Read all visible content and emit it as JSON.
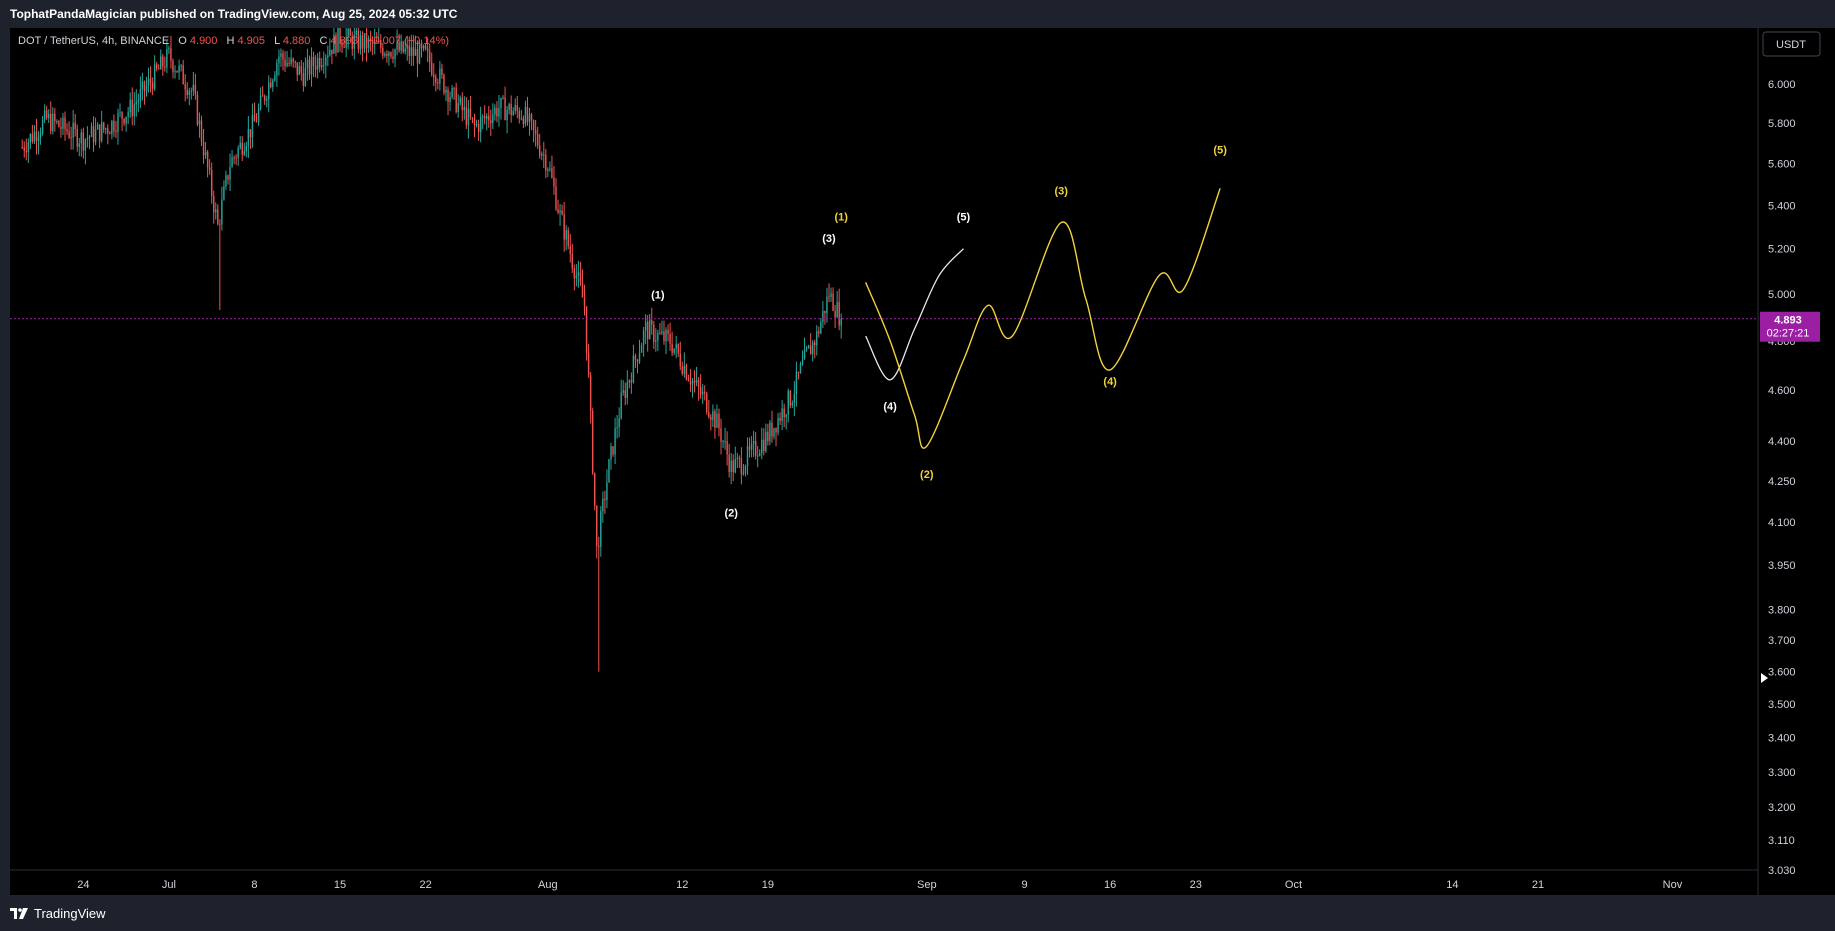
{
  "header": {
    "published": "TophatPandaMagician published on TradingView.com, Aug 25, 2024 05:32 UTC"
  },
  "footer": {
    "brand": "TradingView",
    "logo_icon": "tradingview-logo-icon"
  },
  "colors": {
    "background": "#000000",
    "frame": "#1e222d",
    "up_candle": "#26a69a",
    "down_candle": "#ef5350",
    "white_wave": "#e8e8e8",
    "yellow_wave": "#f2d33c",
    "price_badge": "#9b1fa3",
    "text": "#d1d4dc"
  },
  "chart_data": {
    "type": "candlestick",
    "symbol_line": {
      "symbol": "DOT / TetherUS, 4h, BINANCE",
      "o_label": "O",
      "o_value": "4.900",
      "h_label": "H",
      "h_value": "4.905",
      "l_label": "L",
      "l_value": "4.880",
      "c_label": "C",
      "c_value": "4.893",
      "change": "−0.007 (−0.14%)"
    },
    "currency_button": "USDT",
    "y_scale": "log",
    "ylim": [
      3.03,
      6.3
    ],
    "y_ticks": [
      "6.000",
      "5.800",
      "5.600",
      "5.400",
      "5.200",
      "5.000",
      "4.800",
      "4.600",
      "4.400",
      "4.250",
      "4.100",
      "3.950",
      "3.800",
      "3.700",
      "3.600",
      "3.500",
      "3.400",
      "3.300",
      "3.200",
      "3.110",
      "3.030"
    ],
    "x_ticks": [
      {
        "label": "24",
        "date": "2024-06-24"
      },
      {
        "label": "Jul",
        "date": "2024-07-01"
      },
      {
        "label": "8",
        "date": "2024-07-08"
      },
      {
        "label": "15",
        "date": "2024-07-15"
      },
      {
        "label": "22",
        "date": "2024-07-22"
      },
      {
        "label": "Aug",
        "date": "2024-08-01"
      },
      {
        "label": "12",
        "date": "2024-08-12"
      },
      {
        "label": "19",
        "date": "2024-08-19"
      },
      {
        "label": "Sep",
        "date": "2024-09-01"
      },
      {
        "label": "9",
        "date": "2024-09-09"
      },
      {
        "label": "16",
        "date": "2024-09-16"
      },
      {
        "label": "23",
        "date": "2024-09-23"
      },
      {
        "label": "Oct",
        "date": "2024-10-01"
      },
      {
        "label": "14",
        "date": "2024-10-14"
      },
      {
        "label": "21",
        "date": "2024-10-21"
      },
      {
        "label": "Nov",
        "date": "2024-11-01"
      }
    ],
    "price_path": [
      [
        "2024-06-19",
        5.68
      ],
      [
        "2024-06-21",
        5.82
      ],
      [
        "2024-06-24",
        5.72
      ],
      [
        "2024-06-26",
        5.78
      ],
      [
        "2024-06-28",
        5.88
      ],
      [
        "2024-07-01",
        6.15
      ],
      [
        "2024-07-03",
        5.95
      ],
      [
        "2024-07-05",
        5.3
      ],
      [
        "2024-07-06",
        5.6
      ],
      [
        "2024-07-08",
        5.8
      ],
      [
        "2024-07-10",
        6.15
      ],
      [
        "2024-07-12",
        6.05
      ],
      [
        "2024-07-15",
        6.25
      ],
      [
        "2024-07-18",
        6.2
      ],
      [
        "2024-07-22",
        6.15
      ],
      [
        "2024-07-24",
        5.95
      ],
      [
        "2024-07-26",
        5.78
      ],
      [
        "2024-07-28",
        5.88
      ],
      [
        "2024-07-30",
        5.85
      ],
      [
        "2024-08-01",
        5.6
      ],
      [
        "2024-08-02",
        5.35
      ],
      [
        "2024-08-03",
        5.15
      ],
      [
        "2024-08-04",
        4.95
      ],
      [
        "2024-08-05",
        4.0
      ],
      [
        "2024-08-06",
        4.3
      ],
      [
        "2024-08-07",
        4.55
      ],
      [
        "2024-08-08",
        4.7
      ],
      [
        "2024-08-09",
        4.85
      ],
      [
        "2024-08-10",
        4.82
      ],
      [
        "2024-08-11",
        4.8
      ],
      [
        "2024-08-13",
        4.62
      ],
      [
        "2024-08-14",
        4.55
      ],
      [
        "2024-08-15",
        4.45
      ],
      [
        "2024-08-16",
        4.3
      ],
      [
        "2024-08-17",
        4.32
      ],
      [
        "2024-08-19",
        4.42
      ],
      [
        "2024-08-21",
        4.58
      ],
      [
        "2024-08-22",
        4.72
      ],
      [
        "2024-08-23",
        4.82
      ],
      [
        "2024-08-24",
        5.0
      ],
      [
        "2024-08-25",
        4.893
      ]
    ],
    "current_price": {
      "value": "4.893",
      "countdown": "02:27:21"
    },
    "white_wave": {
      "points": [
        [
          "2024-08-27",
          4.82
        ],
        [
          "2024-08-29",
          4.64
        ],
        [
          "2024-08-31",
          4.85
        ],
        [
          "2024-09-02",
          5.08
        ],
        [
          "2024-09-04",
          5.2
        ]
      ]
    },
    "yellow_wave": {
      "points": [
        [
          "2024-08-27",
          5.05
        ],
        [
          "2024-08-29",
          4.8
        ],
        [
          "2024-08-31",
          4.5
        ],
        [
          "2024-09-01",
          4.38
        ],
        [
          "2024-09-04",
          4.72
        ],
        [
          "2024-09-06",
          4.95
        ],
        [
          "2024-09-08",
          4.82
        ],
        [
          "2024-09-12",
          5.32
        ],
        [
          "2024-09-14",
          4.98
        ],
        [
          "2024-09-16",
          4.68
        ],
        [
          "2024-09-20",
          5.08
        ],
        [
          "2024-09-22",
          5.02
        ],
        [
          "2024-09-25",
          5.48
        ]
      ]
    },
    "wave_labels": [
      {
        "text": "(1)",
        "color": "white",
        "date": "2024-08-10",
        "price": 4.98
      },
      {
        "text": "(2)",
        "color": "white",
        "date": "2024-08-16",
        "price": 4.12
      },
      {
        "text": "(3)",
        "color": "white",
        "date": "2024-08-24",
        "price": 5.23
      },
      {
        "text": "(4)",
        "color": "white",
        "date": "2024-08-29",
        "price": 4.52
      },
      {
        "text": "(5)",
        "color": "white",
        "date": "2024-09-04",
        "price": 5.33
      },
      {
        "text": "(1)",
        "color": "yellow",
        "date": "2024-08-25",
        "price": 5.33
      },
      {
        "text": "(2)",
        "color": "yellow",
        "date": "2024-09-01",
        "price": 4.26
      },
      {
        "text": "(3)",
        "color": "yellow",
        "date": "2024-09-12",
        "price": 5.45
      },
      {
        "text": "(4)",
        "color": "yellow",
        "date": "2024-09-16",
        "price": 4.62
      },
      {
        "text": "(5)",
        "color": "yellow",
        "date": "2024-09-25",
        "price": 5.65
      }
    ]
  }
}
